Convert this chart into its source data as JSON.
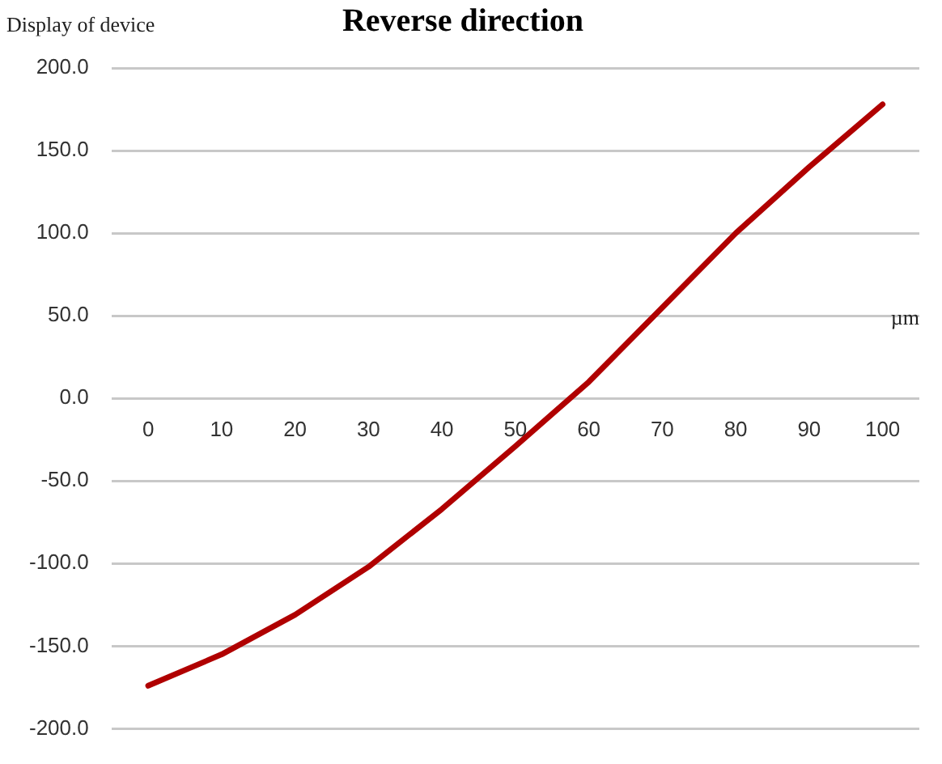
{
  "chart_data": {
    "type": "line",
    "title": "Reverse direction",
    "ylabel": "Display of device",
    "xlabel": "µm",
    "categories": [
      "0",
      "10",
      "20",
      "30",
      "40",
      "50",
      "60",
      "70",
      "80",
      "90",
      "100"
    ],
    "series": [
      {
        "color": "#b00000",
        "values": [
          -174,
          -155,
          -131,
          -102,
          -67,
          -29,
          10,
          55,
          100,
          140,
          178
        ]
      }
    ],
    "ylim": [
      -200,
      200
    ],
    "yticks": [
      {
        "value": -200,
        "label": "-200.0"
      },
      {
        "value": -150,
        "label": "-150.0"
      },
      {
        "value": -100,
        "label": "-100.0"
      },
      {
        "value": -50,
        "label": "-50.0"
      },
      {
        "value": 0,
        "label": "0.0"
      },
      {
        "value": 50,
        "label": "50.0"
      },
      {
        "value": 100,
        "label": "100.0"
      },
      {
        "value": 150,
        "label": "150.0"
      },
      {
        "value": 200,
        "label": "200.0"
      }
    ],
    "grid": "y",
    "legend": false,
    "marker": "none",
    "line_style": "solid"
  }
}
